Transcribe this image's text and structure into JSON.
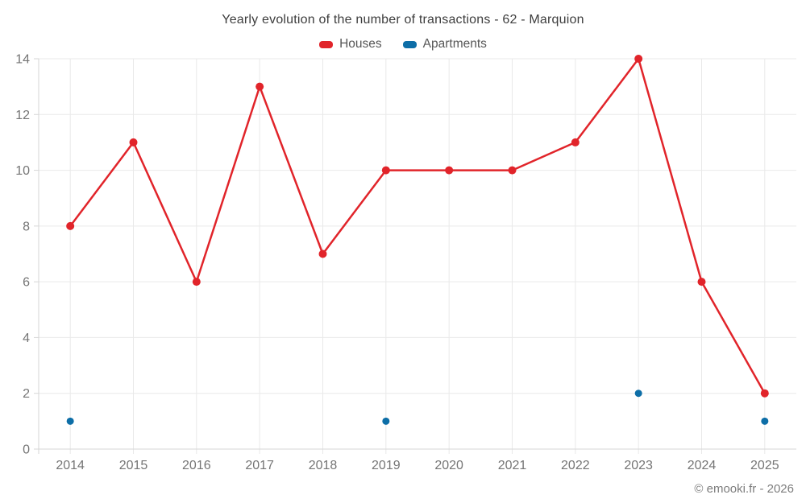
{
  "title": "Yearly evolution of the number of transactions - 62 - Marquion",
  "legend": [
    {
      "label": "Houses",
      "color": "#e1242a"
    },
    {
      "label": "Apartments",
      "color": "#0d6ea7"
    }
  ],
  "footer": "© emooki.fr - 2026",
  "colors": {
    "houses": "#e1242a",
    "apartments": "#0d6ea7",
    "gridline": "#e9e9e9",
    "axis": "#d6d6d6",
    "tick_text": "#757575",
    "title_text": "#3d3d3d"
  },
  "chart_data": {
    "type": "line",
    "title": "Yearly evolution of the number of transactions - 62 - Marquion",
    "categories": [
      "2014",
      "2015",
      "2016",
      "2017",
      "2018",
      "2019",
      "2020",
      "2021",
      "2022",
      "2023",
      "2024",
      "2025"
    ],
    "series": [
      {
        "name": "Houses",
        "color": "#e1242a",
        "marker_radius": 5,
        "values": [
          8,
          11,
          6,
          13,
          7,
          10,
          10,
          10,
          11,
          14,
          6,
          2
        ]
      },
      {
        "name": "Apartments",
        "color": "#0d6ea7",
        "marker_radius": 4.5,
        "values": [
          1,
          null,
          null,
          null,
          null,
          1,
          null,
          null,
          null,
          2,
          null,
          1
        ]
      }
    ],
    "xlabel": "",
    "ylabel": "",
    "ylim": [
      0,
      14
    ],
    "yticks": [
      0,
      2,
      4,
      6,
      8,
      10,
      12,
      14
    ],
    "grid": true,
    "legend_position": "top"
  }
}
